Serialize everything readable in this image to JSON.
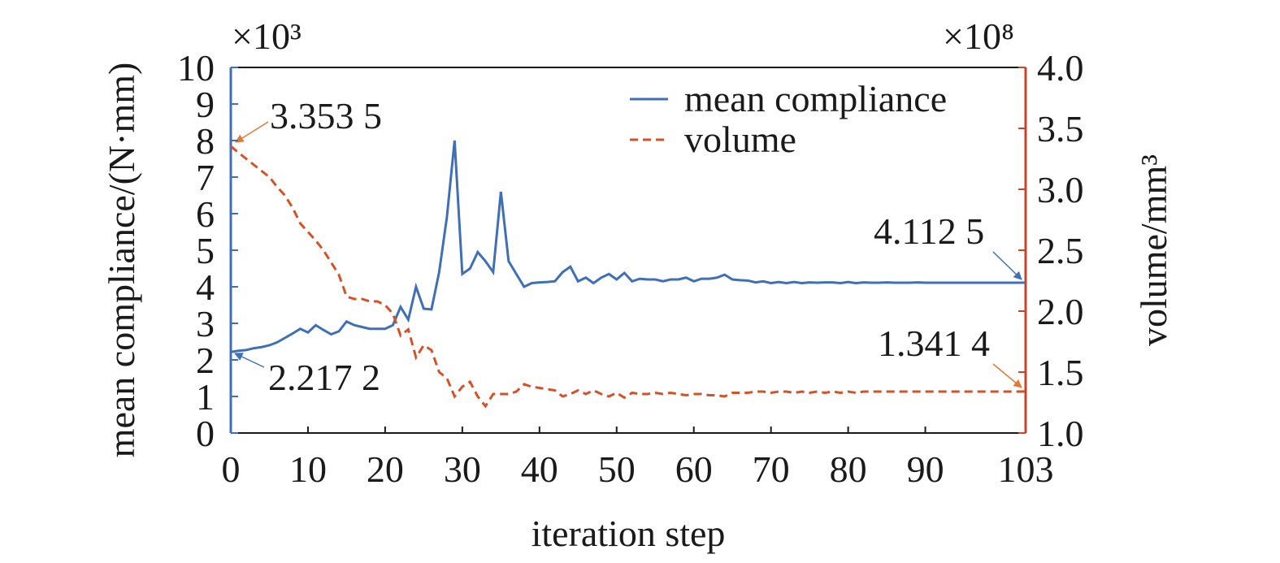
{
  "chart_data": {
    "type": "line",
    "x_label": "iteration step",
    "y_label": "mean compliance/(N·mm)",
    "y2_label": "volume/mm³",
    "y_multiplier": "×10³",
    "y2_multiplier": "×10⁸",
    "x": [
      0,
      1,
      2,
      3,
      4,
      5,
      6,
      7,
      8,
      9,
      10,
      11,
      12,
      13,
      14,
      15,
      16,
      17,
      18,
      19,
      20,
      21,
      22,
      23,
      24,
      25,
      26,
      27,
      28,
      29,
      30,
      31,
      32,
      33,
      34,
      35,
      36,
      37,
      38,
      39,
      40,
      41,
      42,
      43,
      44,
      45,
      46,
      47,
      48,
      49,
      50,
      51,
      52,
      53,
      54,
      55,
      56,
      57,
      58,
      59,
      60,
      61,
      62,
      63,
      64,
      65,
      66,
      67,
      68,
      69,
      70,
      71,
      72,
      73,
      74,
      75,
      76,
      77,
      78,
      79,
      80,
      81,
      82,
      83,
      84,
      85,
      86,
      87,
      88,
      89,
      90,
      91,
      92,
      93,
      94,
      95,
      96,
      97,
      98,
      99,
      100,
      101,
      102,
      103
    ],
    "series": [
      {
        "name": "mean compliance",
        "color": "#3f6fb5",
        "dash": false,
        "values": [
          2.2172,
          2.25,
          2.27,
          2.32,
          2.35,
          2.4,
          2.48,
          2.6,
          2.72,
          2.85,
          2.75,
          2.95,
          2.82,
          2.7,
          2.78,
          3.05,
          2.95,
          2.9,
          2.85,
          2.85,
          2.85,
          2.95,
          3.45,
          3.1,
          4.0,
          3.4,
          3.38,
          4.4,
          5.9,
          8.0,
          4.35,
          4.5,
          4.95,
          4.7,
          4.4,
          6.6,
          4.7,
          4.35,
          4.0,
          4.1,
          4.12,
          4.13,
          4.15,
          4.4,
          4.55,
          4.15,
          4.25,
          4.1,
          4.25,
          4.35,
          4.2,
          4.38,
          4.15,
          4.22,
          4.2,
          4.2,
          4.15,
          4.2,
          4.2,
          4.25,
          4.15,
          4.22,
          4.22,
          4.25,
          4.33,
          4.2,
          4.18,
          4.17,
          4.12,
          4.15,
          4.1,
          4.13,
          4.1,
          4.13,
          4.1,
          4.12,
          4.11,
          4.12,
          4.12,
          4.1,
          4.13,
          4.1,
          4.12,
          4.11,
          4.11,
          4.12,
          4.11,
          4.11,
          4.11,
          4.12,
          4.11,
          4.11,
          4.11,
          4.11,
          4.11,
          4.11,
          4.11,
          4.11,
          4.11,
          4.11,
          4.11,
          4.11,
          4.11,
          4.1125
        ]
      },
      {
        "name": "volume",
        "color": "#d2522a",
        "dash": true,
        "axis": "y2",
        "values": [
          3.3535,
          3.3,
          3.25,
          3.2,
          3.15,
          3.1,
          3.02,
          2.95,
          2.85,
          2.72,
          2.65,
          2.58,
          2.5,
          2.4,
          2.3,
          2.12,
          2.1,
          2.1,
          2.08,
          2.08,
          2.05,
          1.98,
          1.8,
          1.85,
          1.62,
          1.72,
          1.68,
          1.5,
          1.45,
          1.3,
          1.38,
          1.42,
          1.3,
          1.22,
          1.32,
          1.32,
          1.32,
          1.34,
          1.4,
          1.38,
          1.37,
          1.36,
          1.35,
          1.3,
          1.32,
          1.35,
          1.32,
          1.35,
          1.32,
          1.3,
          1.33,
          1.29,
          1.33,
          1.32,
          1.32,
          1.33,
          1.32,
          1.33,
          1.32,
          1.31,
          1.32,
          1.32,
          1.31,
          1.31,
          1.3,
          1.33,
          1.33,
          1.33,
          1.34,
          1.34,
          1.33,
          1.34,
          1.34,
          1.33,
          1.34,
          1.33,
          1.34,
          1.33,
          1.34,
          1.33,
          1.34,
          1.33,
          1.34,
          1.34,
          1.34,
          1.34,
          1.34,
          1.34,
          1.34,
          1.34,
          1.34,
          1.34,
          1.34,
          1.34,
          1.34,
          1.34,
          1.34,
          1.34,
          1.34,
          1.34,
          1.34,
          1.34,
          1.34,
          1.3414
        ]
      }
    ],
    "xlim": [
      0,
      103
    ],
    "xticks": [
      0,
      10,
      20,
      30,
      40,
      50,
      60,
      70,
      80,
      90,
      103
    ],
    "ylim": [
      0,
      10
    ],
    "yticks": [
      0,
      1,
      2,
      3,
      4,
      5,
      6,
      7,
      8,
      9,
      10
    ],
    "y2lim": [
      1,
      4
    ],
    "y2ticks": [
      {
        "value": 1,
        "label": "1.0"
      },
      {
        "value": 1.5,
        "label": "1.5"
      },
      {
        "value": 2,
        "label": "2.0"
      },
      {
        "value": 2.5,
        "label": "2.5"
      },
      {
        "value": 3,
        "label": "3.0"
      },
      {
        "value": 3.5,
        "label": "3.5"
      },
      {
        "value": 4,
        "label": "4.0"
      }
    ],
    "y_axis_color": "#3f6fb5",
    "y2_axis_color": "#c8432a",
    "annotations": [
      "3.353 5",
      "2.217 2",
      "4.112 5",
      "1.341 4"
    ]
  }
}
